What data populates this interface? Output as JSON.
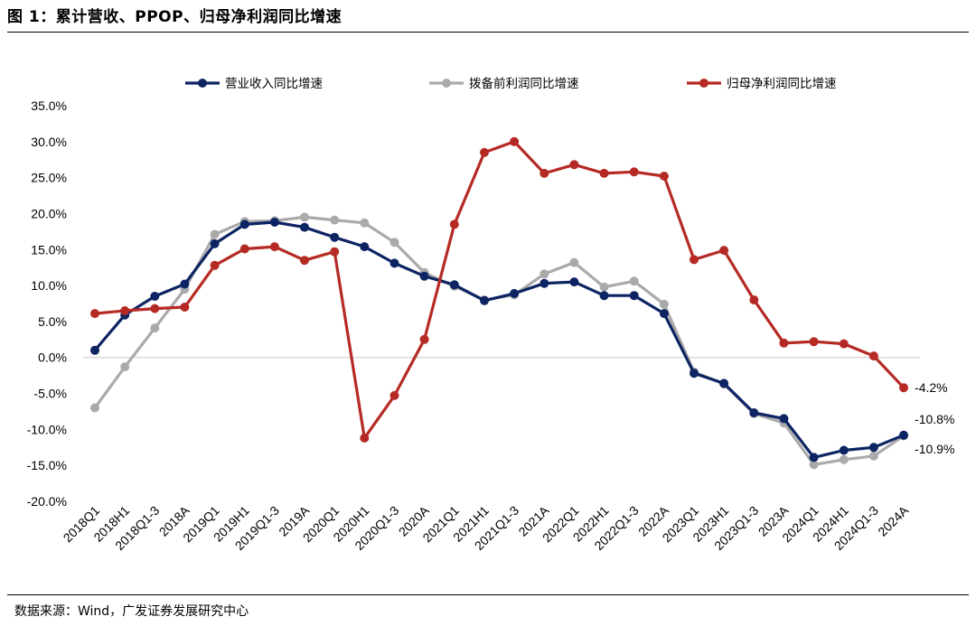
{
  "figure": {
    "title": "图 1：累计营收、PPOP、归母净利润同比增速",
    "source": "数据来源：Wind，广发证券发展研究中心"
  },
  "chart_data": {
    "type": "line",
    "title": "",
    "xlabel": "",
    "ylabel": "",
    "ylim": [
      -20,
      35
    ],
    "yticks": [
      "35.0%",
      "30.0%",
      "25.0%",
      "20.0%",
      "15.0%",
      "10.0%",
      "5.0%",
      "0.0%",
      "-5.0%",
      "-10.0%",
      "-15.0%",
      "-20.0%"
    ],
    "ytick_values": [
      35,
      30,
      25,
      20,
      15,
      10,
      5,
      0,
      -5,
      -10,
      -15,
      -20
    ],
    "grid": false,
    "legend_position": "top",
    "categories": [
      "2018Q1",
      "2018H1",
      "2018Q1-3",
      "2018A",
      "2019Q1",
      "2019H1",
      "2019Q1-3",
      "2019A",
      "2020Q1",
      "2020H1",
      "2020Q1-3",
      "2020A",
      "2021Q1",
      "2021H1",
      "2021Q1-3",
      "2021A",
      "2022Q1",
      "2022H1",
      "2022Q1-3",
      "2022A",
      "2023Q1",
      "2023H1",
      "2023Q1-3",
      "2023A",
      "2024Q1",
      "2024H1",
      "2024Q1-3",
      "2024A"
    ],
    "series": [
      {
        "name": "营业收入同比增速",
        "color": "#0d2463",
        "values": [
          1.0,
          5.9,
          8.5,
          10.2,
          15.8,
          18.5,
          18.8,
          18.1,
          16.7,
          15.4,
          13.1,
          11.3,
          10.1,
          7.9,
          8.9,
          10.3,
          10.5,
          8.6,
          8.6,
          6.1,
          -2.2,
          -3.6,
          -7.7,
          -8.5,
          -13.9,
          -12.9,
          -12.5,
          -10.8
        ]
      },
      {
        "name": "拨备前利润同比增速",
        "color": "#aaaaaa",
        "values": [
          -7.0,
          -1.3,
          4.1,
          9.5,
          17.1,
          18.9,
          19.0,
          19.5,
          19.1,
          18.7,
          16.0,
          11.8,
          9.9,
          8.0,
          8.7,
          11.6,
          13.2,
          9.8,
          10.6,
          7.4,
          -2.0,
          -3.7,
          -7.8,
          -9.1,
          -14.9,
          -14.2,
          -13.7,
          -10.9
        ]
      },
      {
        "name": "归母净利润同比增速",
        "color": "#b52a24",
        "values": [
          6.1,
          6.5,
          6.8,
          7.0,
          12.8,
          15.1,
          15.4,
          13.5,
          14.7,
          -11.2,
          -5.3,
          2.5,
          18.5,
          28.5,
          30.0,
          25.6,
          26.8,
          25.6,
          25.8,
          25.2,
          13.6,
          14.9,
          8.0,
          2.0,
          2.2,
          1.9,
          0.2,
          -4.2
        ]
      }
    ],
    "end_labels": [
      "-4.2%",
      "-10.8%",
      "-10.9%"
    ]
  }
}
